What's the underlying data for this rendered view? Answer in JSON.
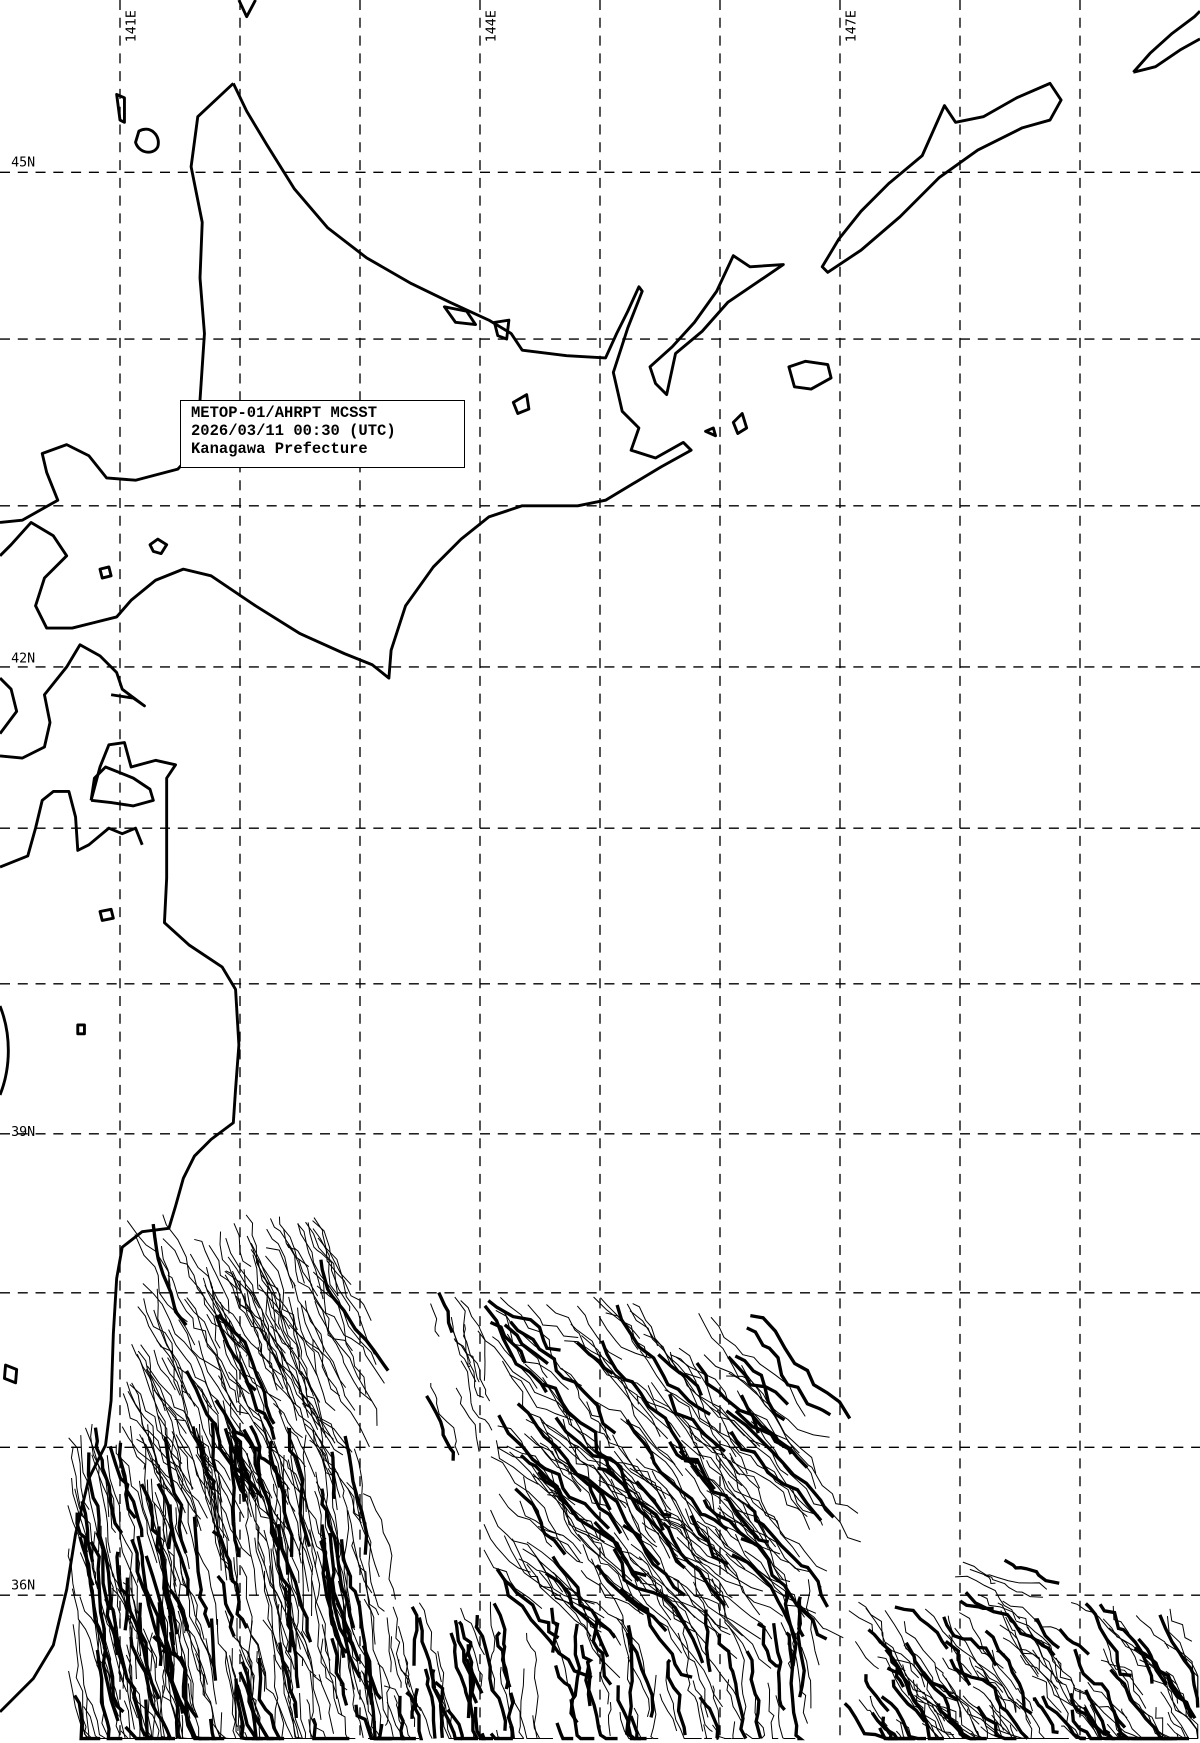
{
  "info": {
    "satellite": "METOP-01/AHRPT MCSST",
    "datetime": "2026/03/11 00:30 (UTC)",
    "region": "Kanagawa Prefecture"
  },
  "grid": {
    "lon_labels": [
      "141E",
      "144E",
      "147E"
    ],
    "lat_labels": [
      "45N",
      "42N",
      "39N",
      "36N"
    ]
  },
  "colors": {
    "line": "#000000",
    "background": "#ffffff"
  }
}
